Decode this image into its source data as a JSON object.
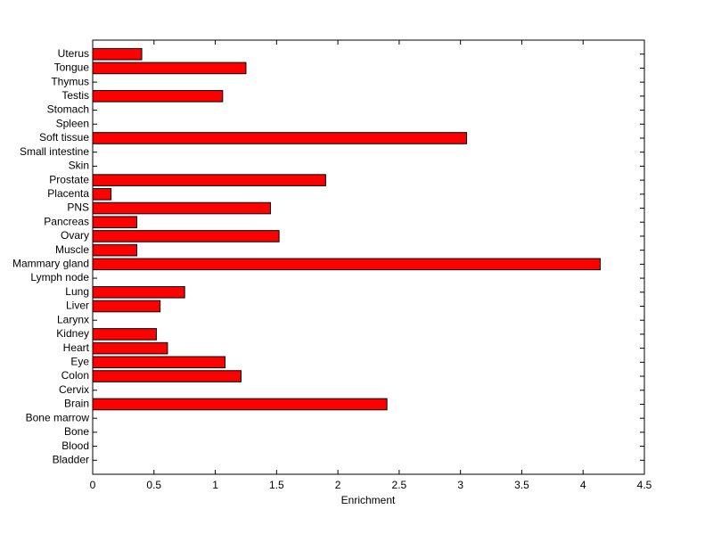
{
  "chart_data": {
    "type": "barh",
    "xlabel": "Enrichment",
    "categories": [
      "Bladder",
      "Blood",
      "Bone",
      "Bone marrow",
      "Brain",
      "Cervix",
      "Colon",
      "Eye",
      "Heart",
      "Kidney",
      "Larynx",
      "Liver",
      "Lung",
      "Lymph node",
      "Mammary gland",
      "Muscle",
      "Ovary",
      "Pancreas",
      "PNS",
      "Placenta",
      "Prostate",
      "Skin",
      "Small intestine",
      "Soft tissue",
      "Spleen",
      "Stomach",
      "Testis",
      "Thymus",
      "Tongue",
      "Uterus"
    ],
    "values": [
      0,
      0,
      0,
      0,
      2.4,
      0,
      1.21,
      1.08,
      0.61,
      0.52,
      0,
      0.55,
      0.75,
      0,
      4.14,
      0.36,
      1.52,
      0.36,
      1.45,
      0.15,
      1.9,
      0,
      0,
      3.05,
      0,
      0,
      1.06,
      0,
      1.25,
      0.4
    ],
    "color": "#ff0000",
    "xlim": [
      0,
      4.5
    ],
    "xticks": [
      0,
      0.5,
      1,
      1.5,
      2,
      2.5,
      3,
      3.5,
      4,
      4.5
    ]
  }
}
